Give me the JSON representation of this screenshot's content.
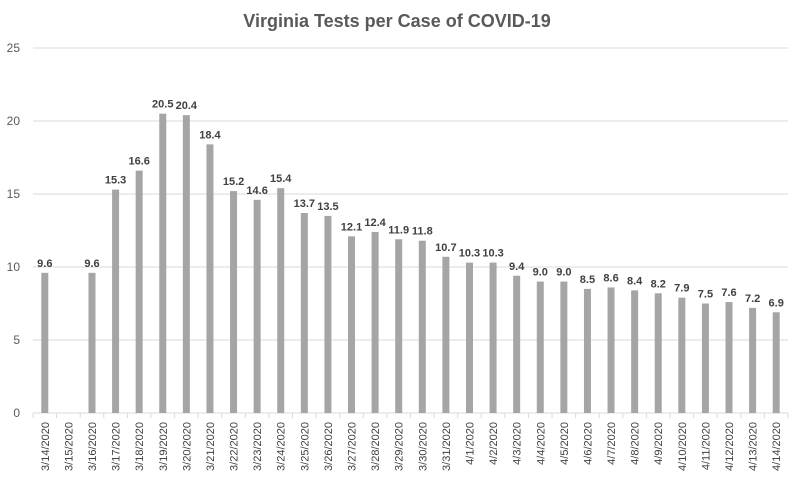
{
  "chart_data": {
    "type": "bar",
    "title": "Virginia Tests per Case of COVID-19",
    "xlabel": "",
    "ylabel": "",
    "ylim": [
      0,
      25
    ],
    "yticks": [
      0,
      5,
      10,
      15,
      20,
      25
    ],
    "grid": true,
    "bar_color": "#a5a5a5",
    "categories": [
      "3/14/2020",
      "3/15/2020",
      "3/16/2020",
      "3/17/2020",
      "3/18/2020",
      "3/19/2020",
      "3/20/2020",
      "3/21/2020",
      "3/22/2020",
      "3/23/2020",
      "3/24/2020",
      "3/25/2020",
      "3/26/2020",
      "3/27/2020",
      "3/28/2020",
      "3/29/2020",
      "3/30/2020",
      "3/31/2020",
      "4/1/2020",
      "4/2/2020",
      "4/3/2020",
      "4/4/2020",
      "4/5/2020",
      "4/6/2020",
      "4/7/2020",
      "4/8/2020",
      "4/9/2020",
      "4/10/2020",
      "4/11/2020",
      "4/12/2020",
      "4/13/2020",
      "4/14/2020"
    ],
    "values": [
      9.6,
      null,
      9.6,
      15.3,
      16.6,
      20.5,
      20.4,
      18.4,
      15.2,
      14.6,
      15.4,
      13.7,
      13.5,
      12.1,
      12.4,
      11.9,
      11.8,
      10.7,
      10.3,
      10.3,
      9.4,
      9.0,
      9.0,
      8.5,
      8.6,
      8.4,
      8.2,
      7.9,
      7.5,
      7.6,
      7.2,
      6.9
    ],
    "data_labels": [
      "9.6",
      "",
      "9.6",
      "15.3",
      "16.6",
      "20.5",
      "20.4",
      "18.4",
      "15.2",
      "14.6",
      "15.4",
      "13.7",
      "13.5",
      "12.1",
      "12.4",
      "11.9",
      "11.8",
      "10.7",
      "10.3",
      "10.3",
      "9.4",
      "9.0",
      "9.0",
      "8.5",
      "8.6",
      "8.4",
      "8.2",
      "7.9",
      "7.5",
      "7.6",
      "7.2",
      "6.9"
    ]
  }
}
